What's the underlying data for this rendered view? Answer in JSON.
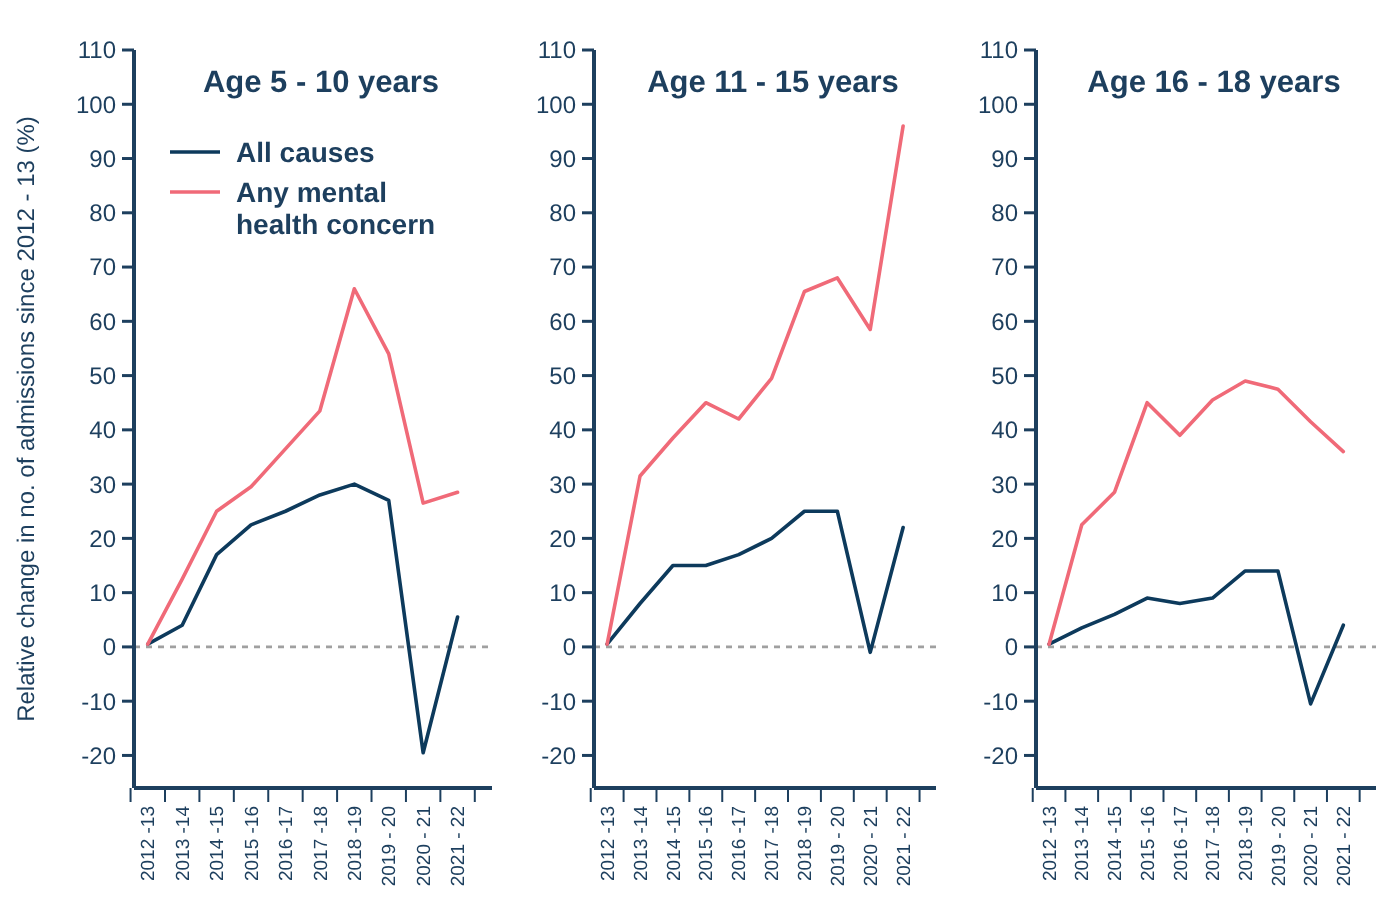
{
  "chart_data": [
    {
      "type": "line",
      "title": "Age 5 - 10 years",
      "ylabel": "Relative change in no. of admissions since 2012 - 13 (%)",
      "categories": [
        "2012 -13",
        "2013 -14",
        "2014 -15",
        "2015 -16",
        "2016 -17",
        "2017 -18",
        "2018 -19",
        "2019 - 20",
        "2020 - 21",
        "2021 - 22"
      ],
      "ylim": [
        -26,
        110
      ],
      "yticks": [
        -20,
        -10,
        0,
        10,
        20,
        30,
        40,
        50,
        60,
        70,
        80,
        90,
        100,
        110
      ],
      "grid": false,
      "legend": "top left",
      "marker": "none",
      "ref_lines": [
        {
          "axis": "y",
          "value": 0,
          "color": "#a0a0a0",
          "line_style": "dotted"
        }
      ],
      "series": [
        {
          "name": "All causes",
          "color": "#0d3a5c",
          "values": [
            0.5,
            4,
            17,
            22.5,
            25,
            28,
            30,
            27,
            -19.5,
            5.5
          ]
        },
        {
          "name": "Any mental health concern",
          "color": "#f06a78",
          "values": [
            0.5,
            12.5,
            25,
            29.5,
            36.5,
            43.5,
            66,
            54,
            26.5,
            28.5
          ]
        }
      ]
    },
    {
      "type": "line",
      "title": "Age 11 - 15 years",
      "categories": [
        "2012 -13",
        "2013 -14",
        "2014 -15",
        "2015 -16",
        "2016 -17",
        "2017 -18",
        "2018 -19",
        "2019 - 20",
        "2020 - 21",
        "2021 - 22"
      ],
      "ylim": [
        -26,
        110
      ],
      "yticks": [
        -20,
        -10,
        0,
        10,
        20,
        30,
        40,
        50,
        60,
        70,
        80,
        90,
        100,
        110
      ],
      "grid": false,
      "legend": false,
      "marker": "none",
      "ref_lines": [
        {
          "axis": "y",
          "value": 0,
          "color": "#a0a0a0",
          "line_style": "dotted"
        }
      ],
      "series": [
        {
          "color": "#0d3a5c",
          "values": [
            0.5,
            8,
            15,
            15,
            17,
            20,
            25,
            25,
            -1,
            22
          ]
        },
        {
          "color": "#f06a78",
          "values": [
            0.5,
            31.5,
            38.5,
            45,
            42,
            49.5,
            65.5,
            68,
            58.5,
            96
          ]
        }
      ]
    },
    {
      "type": "line",
      "title": "Age 16 - 18 years",
      "categories": [
        "2012 -13",
        "2013 -14",
        "2014 -15",
        "2015 -16",
        "2016 -17",
        "2017 -18",
        "2018 -19",
        "2019 - 20",
        "2020 - 21",
        "2021 - 22"
      ],
      "ylim": [
        -26,
        110
      ],
      "yticks": [
        -20,
        -10,
        0,
        10,
        20,
        30,
        40,
        50,
        60,
        70,
        80,
        90,
        100,
        110
      ],
      "grid": false,
      "legend": false,
      "marker": "none",
      "ref_lines": [
        {
          "axis": "y",
          "value": 0,
          "color": "#a0a0a0",
          "line_style": "dotted"
        }
      ],
      "series": [
        {
          "color": "#0d3a5c",
          "values": [
            0.5,
            3.5,
            6,
            9,
            8,
            9,
            14,
            14,
            -10.5,
            4
          ]
        },
        {
          "color": "#f06a78",
          "values": [
            0.5,
            22.5,
            28.5,
            45,
            39,
            45.5,
            49,
            47.5,
            41.5,
            36
          ]
        }
      ]
    }
  ]
}
